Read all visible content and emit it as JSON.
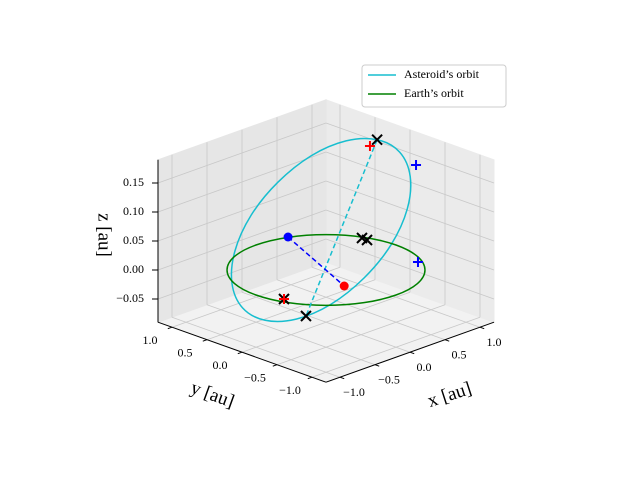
{
  "chart_data": {
    "type": "line3d",
    "x_label": "x [au]",
    "y_label": "y [au]",
    "z_label": "z [au]",
    "xlim": [
      -1.2,
      1.2
    ],
    "ylim": [
      -1.2,
      1.2
    ],
    "zlim": [
      -0.09,
      0.19
    ],
    "xticks": [
      {
        "value": -1.0,
        "label": "−1.0"
      },
      {
        "value": -0.5,
        "label": "−0.5"
      },
      {
        "value": 0,
        "label": "0.0"
      },
      {
        "value": 0.5,
        "label": "0.5"
      },
      {
        "value": 1.0,
        "label": "1.0"
      }
    ],
    "yticks": [
      {
        "value": -1.0,
        "label": "−1.0"
      },
      {
        "value": -0.5,
        "label": "−0.5"
      },
      {
        "value": 0,
        "label": "0.0"
      },
      {
        "value": 0.5,
        "label": "0.5"
      },
      {
        "value": 1.0,
        "label": "1.0"
      }
    ],
    "zticks": [
      {
        "value": -0.05,
        "label": "−0.05"
      },
      {
        "value": 0,
        "label": "0.00"
      },
      {
        "value": 0.05,
        "label": "0.05"
      },
      {
        "value": 0.1,
        "label": "0.10"
      },
      {
        "value": 0.15,
        "label": "0.15"
      }
    ],
    "grid": true,
    "legend": "upper right",
    "series": [
      {
        "name": "Asteroid’s orbit",
        "color": "#17becf",
        "x": [
          0.5,
          0.692,
          0.778,
          0.746,
          0.6,
          0.362,
          0.07,
          -0.232,
          -0.5,
          -0.692,
          -0.778,
          -0.746,
          -0.6,
          -0.362,
          -0.07,
          0.232
        ],
        "y": [
          -0.23,
          -0.36,
          -0.425,
          -0.415,
          -0.33,
          -0.185,
          -0.001,
          0.194,
          0.37,
          0.5,
          0.565,
          0.555,
          0.47,
          0.325,
          0.141,
          -0.054
        ],
        "z": [
          0.213,
          0.189,
          0.146,
          0.091,
          0.032,
          -0.021,
          -0.062,
          -0.083,
          -0.081,
          -0.057,
          -0.014,
          0.041,
          0.1,
          0.153,
          0.194,
          0.215
        ]
      },
      {
        "name": "Earth’s orbit",
        "color": "#008000",
        "x": [
          1,
          0.924,
          0.707,
          0.383,
          0,
          -0.383,
          -0.707,
          -0.924,
          -1,
          -0.924,
          -0.707,
          -0.383,
          0,
          0.383,
          0.707,
          0.924
        ],
        "y": [
          0,
          0.383,
          0.707,
          0.924,
          1,
          0.924,
          0.707,
          0.383,
          0,
          -0.383,
          -0.707,
          -0.924,
          -1,
          -0.924,
          -0.707,
          -0.383
        ],
        "z": [
          0,
          0,
          0,
          0,
          0,
          0,
          0,
          0,
          0,
          0,
          0,
          0,
          0,
          0,
          0,
          0
        ]
      }
    ],
    "segments": [
      {
        "color": "#17becf",
        "x": [
          0.5,
          -0.251
        ],
        "y": [
          -0.23,
          0.035
        ],
        "z": [
          0.213,
          -0.07
        ]
      },
      {
        "color": "#0000ff",
        "x": [
          0.389,
          -0.19
        ],
        "y": [
          0.931,
          -0.45
        ],
        "z": [
          0,
          0
        ]
      }
    ],
    "markers": [
      {
        "marker": "o",
        "color": "#0000ff",
        "x": [
          0.389
        ],
        "y": [
          0.931
        ],
        "z": [
          0
        ]
      },
      {
        "marker": "o",
        "color": "#ff0000",
        "x": [
          -0.19
        ],
        "y": [
          -0.45
        ],
        "z": [
          0
        ]
      },
      {
        "marker": "x",
        "color": "#000000",
        "x": [
          0.5,
          -0.251,
          0.897,
          0.893,
          -0.88
        ],
        "y": [
          -0.23,
          0.035,
          0.383,
          0.307,
          -0.28
        ],
        "z": [
          0.213,
          -0.07,
          0,
          0,
          0
        ]
      },
      {
        "marker": "+",
        "color": "#ff0000",
        "x": [
          0.474,
          -0.88
        ],
        "y": [
          -0.154,
          -0.28
        ],
        "z": [
          0.2,
          0
        ]
      },
      {
        "marker": "+",
        "color": "#0000ff",
        "x": [
          1.003,
          0.817
        ],
        "y": [
          -0.283,
          -0.497
        ],
        "z": [
          0.15,
          0
        ]
      }
    ]
  }
}
